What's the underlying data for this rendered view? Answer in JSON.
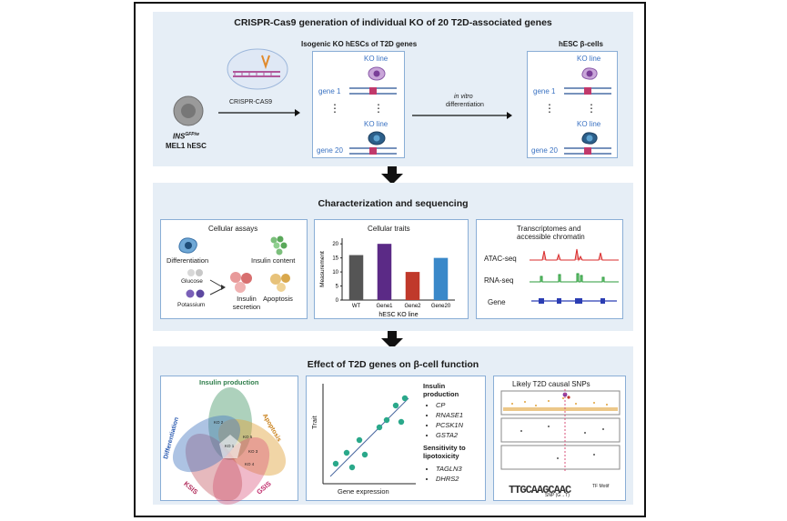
{
  "section1": {
    "title": "CRISPR-Cas9 generation of individual KO of 20 T2D-associated genes",
    "cell_label_gene": "INS",
    "cell_label_sup": "GFP/w",
    "cell_label_line": "MEL1 hESC",
    "crispr_label": "CRISPR-CAS9",
    "ko_title": "Isogenic KO hESCs of T2D genes",
    "ko_line_label_1": "KO line",
    "ko_line_label_2": "KO line",
    "gene_1": "gene 1",
    "gene_20": "gene 20",
    "dots": "⋮",
    "diff_label_italic": "in vitro",
    "diff_label": "differentiation",
    "beta_title": "hESC β-cells",
    "beta_ko_label_1": "KO line",
    "beta_ko_label_2": "KO line",
    "beta_gene_1": "gene 1",
    "beta_gene_20": "gene 20"
  },
  "section2": {
    "title": "Characterization and sequencing",
    "assays": {
      "title": "Cellular assays",
      "differentiation": "Differentiation",
      "insulin_content": "Insulin content",
      "glucose": "Glucose",
      "potassium": "Potassium",
      "insulin_secretion": "Insulin secretion",
      "apoptosis": "Apoptosis"
    },
    "traits": {
      "title": "Cellular traits"
    },
    "omics": {
      "title_line1": "Transcriptomes and",
      "title_line2": "accessible chromatin",
      "atac": "ATAC-seq",
      "rna": "RNA-seq",
      "gene": "Gene"
    }
  },
  "chart_data": {
    "type": "bar",
    "title": "Cellular traits",
    "categories": [
      "WT",
      "Gene1",
      "Gene2",
      "Gene20"
    ],
    "values": [
      16,
      20,
      10,
      15
    ],
    "colors": [
      "#555555",
      "#5b2a86",
      "#c0392b",
      "#3a88c9"
    ],
    "xlabel": "hESC KO line",
    "ylabel": "Measurement",
    "ylim": [
      0,
      22
    ],
    "yticks": [
      0,
      5,
      10,
      15,
      20
    ]
  },
  "section3": {
    "title": "Effect of T2D genes on β-cell function",
    "venn": {
      "insulin_production": "Insulin production",
      "apoptosis": "Apoptosis",
      "gsis": "GSIS",
      "ksis": "KSIS",
      "differentiation": "Differentiation",
      "ko1": "KO 1",
      "ko2": "KO 2",
      "ko3": "KO 3",
      "ko4": "KO 4",
      "ko5": "KO 5"
    },
    "scatter": {
      "xlabel": "Gene expression",
      "ylabel": "Trait"
    },
    "insulin_heading": "Insulin production",
    "insulin_genes": [
      "CP",
      "RNASE1",
      "PCSK1N",
      "GSTA2"
    ],
    "lipo_heading": "Sensitivity to lipotoxicity",
    "lipo_genes": [
      "TAGLN3",
      "DHRS2"
    ],
    "snp": {
      "title": "Likely T2D causal SNPs",
      "motif_text": "TF Motif",
      "snp_label": "SNP (G→T)"
    }
  }
}
